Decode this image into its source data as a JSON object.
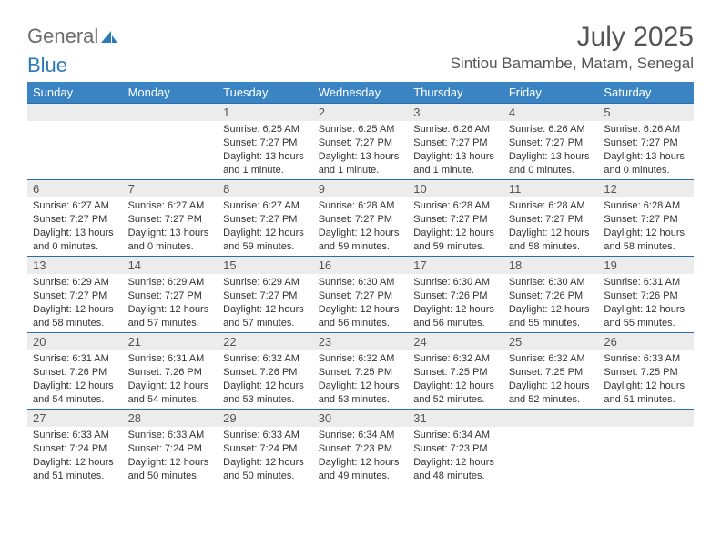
{
  "logo": {
    "line1": "General",
    "line2": "Blue"
  },
  "title": "July 2025",
  "location": "Sintiou Bamambe, Matam, Senegal",
  "colors": {
    "header_bg": "#3b84c4",
    "header_text": "#ffffff",
    "daynum_bg": "#ececec",
    "daynum_text": "#555555",
    "body_text": "#333333",
    "rule": "#2a6ca8",
    "logo_gray": "#6b6b6b",
    "logo_blue": "#2a7ab8"
  },
  "weekdays": [
    "Sunday",
    "Monday",
    "Tuesday",
    "Wednesday",
    "Thursday",
    "Friday",
    "Saturday"
  ],
  "weeks": [
    [
      null,
      null,
      {
        "n": "1",
        "sr": "6:25 AM",
        "ss": "7:27 PM",
        "dl": "13 hours and 1 minute."
      },
      {
        "n": "2",
        "sr": "6:25 AM",
        "ss": "7:27 PM",
        "dl": "13 hours and 1 minute."
      },
      {
        "n": "3",
        "sr": "6:26 AM",
        "ss": "7:27 PM",
        "dl": "13 hours and 1 minute."
      },
      {
        "n": "4",
        "sr": "6:26 AM",
        "ss": "7:27 PM",
        "dl": "13 hours and 0 minutes."
      },
      {
        "n": "5",
        "sr": "6:26 AM",
        "ss": "7:27 PM",
        "dl": "13 hours and 0 minutes."
      }
    ],
    [
      {
        "n": "6",
        "sr": "6:27 AM",
        "ss": "7:27 PM",
        "dl": "13 hours and 0 minutes."
      },
      {
        "n": "7",
        "sr": "6:27 AM",
        "ss": "7:27 PM",
        "dl": "13 hours and 0 minutes."
      },
      {
        "n": "8",
        "sr": "6:27 AM",
        "ss": "7:27 PM",
        "dl": "12 hours and 59 minutes."
      },
      {
        "n": "9",
        "sr": "6:28 AM",
        "ss": "7:27 PM",
        "dl": "12 hours and 59 minutes."
      },
      {
        "n": "10",
        "sr": "6:28 AM",
        "ss": "7:27 PM",
        "dl": "12 hours and 59 minutes."
      },
      {
        "n": "11",
        "sr": "6:28 AM",
        "ss": "7:27 PM",
        "dl": "12 hours and 58 minutes."
      },
      {
        "n": "12",
        "sr": "6:28 AM",
        "ss": "7:27 PM",
        "dl": "12 hours and 58 minutes."
      }
    ],
    [
      {
        "n": "13",
        "sr": "6:29 AM",
        "ss": "7:27 PM",
        "dl": "12 hours and 58 minutes."
      },
      {
        "n": "14",
        "sr": "6:29 AM",
        "ss": "7:27 PM",
        "dl": "12 hours and 57 minutes."
      },
      {
        "n": "15",
        "sr": "6:29 AM",
        "ss": "7:27 PM",
        "dl": "12 hours and 57 minutes."
      },
      {
        "n": "16",
        "sr": "6:30 AM",
        "ss": "7:27 PM",
        "dl": "12 hours and 56 minutes."
      },
      {
        "n": "17",
        "sr": "6:30 AM",
        "ss": "7:26 PM",
        "dl": "12 hours and 56 minutes."
      },
      {
        "n": "18",
        "sr": "6:30 AM",
        "ss": "7:26 PM",
        "dl": "12 hours and 55 minutes."
      },
      {
        "n": "19",
        "sr": "6:31 AM",
        "ss": "7:26 PM",
        "dl": "12 hours and 55 minutes."
      }
    ],
    [
      {
        "n": "20",
        "sr": "6:31 AM",
        "ss": "7:26 PM",
        "dl": "12 hours and 54 minutes."
      },
      {
        "n": "21",
        "sr": "6:31 AM",
        "ss": "7:26 PM",
        "dl": "12 hours and 54 minutes."
      },
      {
        "n": "22",
        "sr": "6:32 AM",
        "ss": "7:26 PM",
        "dl": "12 hours and 53 minutes."
      },
      {
        "n": "23",
        "sr": "6:32 AM",
        "ss": "7:25 PM",
        "dl": "12 hours and 53 minutes."
      },
      {
        "n": "24",
        "sr": "6:32 AM",
        "ss": "7:25 PM",
        "dl": "12 hours and 52 minutes."
      },
      {
        "n": "25",
        "sr": "6:32 AM",
        "ss": "7:25 PM",
        "dl": "12 hours and 52 minutes."
      },
      {
        "n": "26",
        "sr": "6:33 AM",
        "ss": "7:25 PM",
        "dl": "12 hours and 51 minutes."
      }
    ],
    [
      {
        "n": "27",
        "sr": "6:33 AM",
        "ss": "7:24 PM",
        "dl": "12 hours and 51 minutes."
      },
      {
        "n": "28",
        "sr": "6:33 AM",
        "ss": "7:24 PM",
        "dl": "12 hours and 50 minutes."
      },
      {
        "n": "29",
        "sr": "6:33 AM",
        "ss": "7:24 PM",
        "dl": "12 hours and 50 minutes."
      },
      {
        "n": "30",
        "sr": "6:34 AM",
        "ss": "7:23 PM",
        "dl": "12 hours and 49 minutes."
      },
      {
        "n": "31",
        "sr": "6:34 AM",
        "ss": "7:23 PM",
        "dl": "12 hours and 48 minutes."
      },
      null,
      null
    ]
  ],
  "labels": {
    "sunrise": "Sunrise:",
    "sunset": "Sunset:",
    "daylight": "Daylight:"
  }
}
